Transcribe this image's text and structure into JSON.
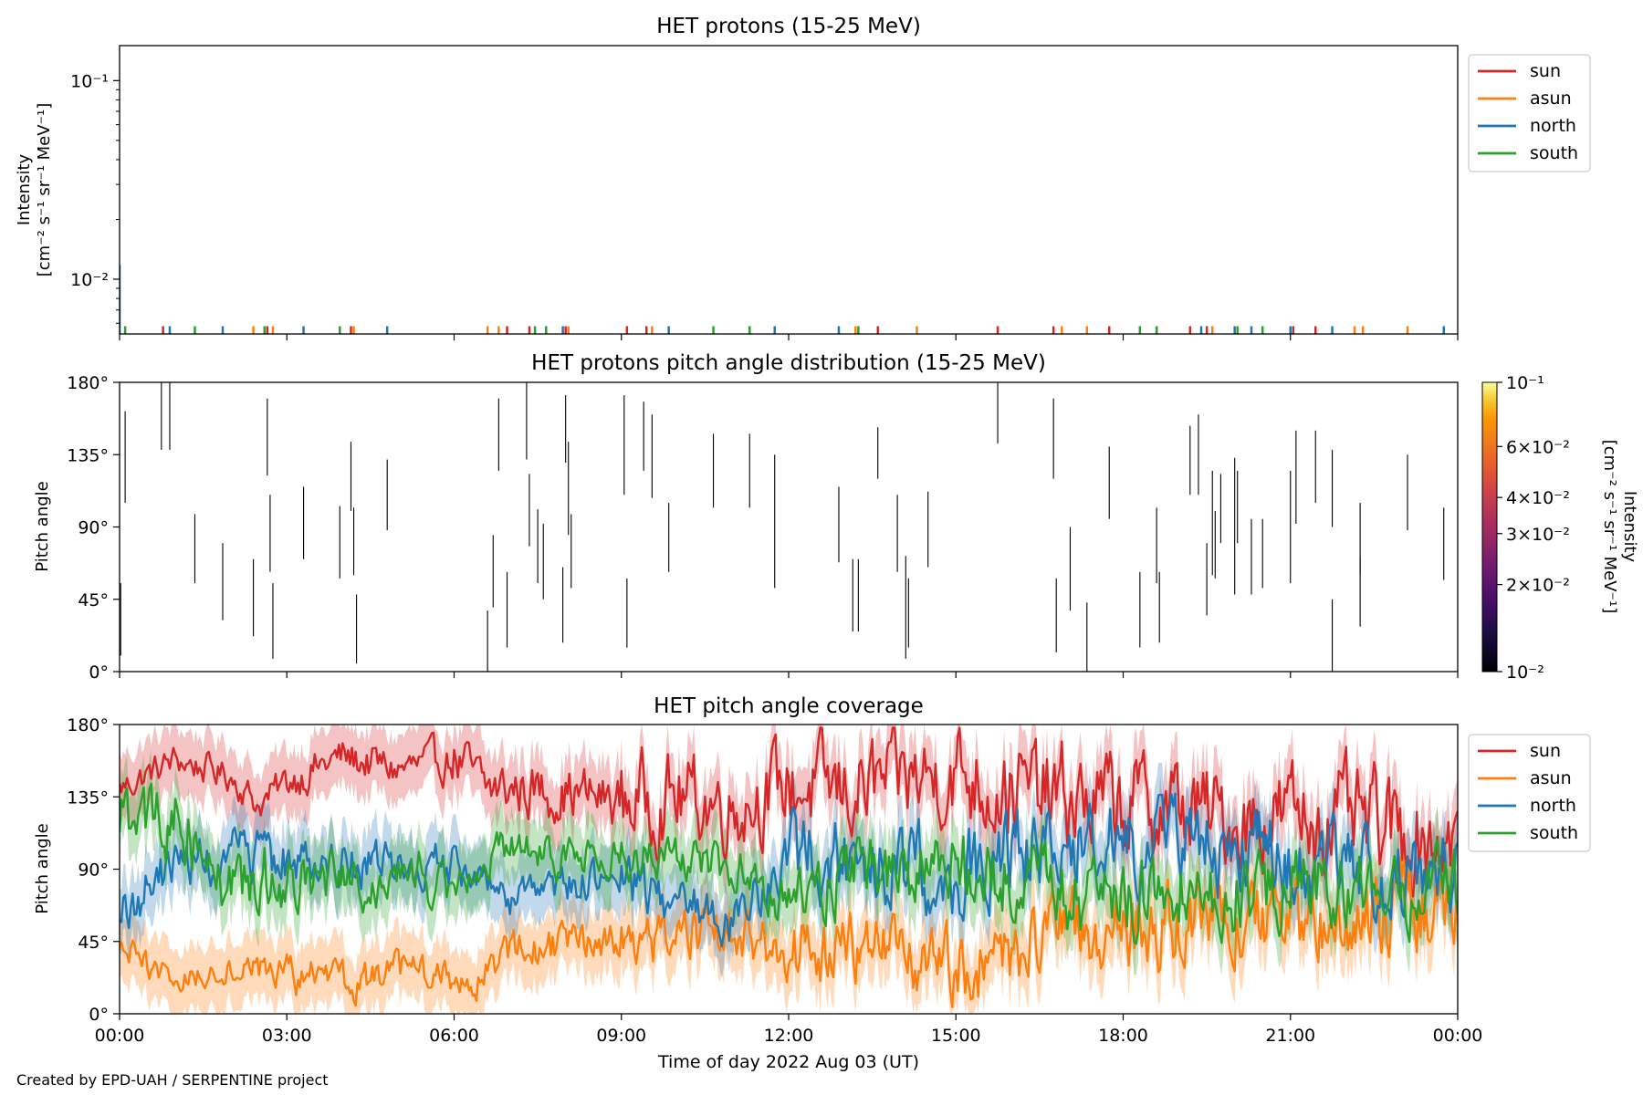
{
  "footer": "Created by EPD-UAH / SERPENTINE project",
  "chart_data": [
    {
      "type": "line",
      "title": "HET protons (15-25 MeV)",
      "ylabel_line1": "Intensity",
      "ylabel_line2": "[cm⁻² s⁻¹ sr⁻¹ MeV⁻¹]",
      "yscale": "log",
      "ylim": [
        0.0053,
        0.15
      ],
      "yticks": [
        {
          "v": 0.01,
          "label": "10⁻²"
        },
        {
          "v": 0.1,
          "label": "10⁻¹"
        }
      ],
      "legend": {
        "position": "outside-right",
        "entries": [
          "sun",
          "asun",
          "north",
          "south"
        ]
      },
      "colors": {
        "sun": "#d62728",
        "asun": "#ff7f0e",
        "north": "#1f77b4",
        "south": "#2ca02c"
      },
      "series": [
        {
          "name": "sun",
          "spikes": [
            [
              0.78,
              0.0058
            ],
            [
              2.65,
              0.0058
            ],
            [
              4.15,
              0.0058
            ],
            [
              6.95,
              0.0058
            ],
            [
              7.35,
              0.0058
            ],
            [
              8.0,
              0.0058
            ],
            [
              9.1,
              0.0058
            ],
            [
              9.45,
              0.0058
            ],
            [
              13.6,
              0.0058
            ],
            [
              15.75,
              0.0058
            ],
            [
              16.75,
              0.0058
            ],
            [
              17.75,
              0.0058
            ],
            [
              19.2,
              0.0058
            ],
            [
              19.5,
              0.0058
            ],
            [
              21.05,
              0.0058
            ],
            [
              21.45,
              0.0058
            ]
          ]
        },
        {
          "name": "asun",
          "spikes": [
            [
              2.4,
              0.0058
            ],
            [
              2.75,
              0.0058
            ],
            [
              4.2,
              0.0058
            ],
            [
              6.6,
              0.0058
            ],
            [
              6.8,
              0.0058
            ],
            [
              8.05,
              0.0058
            ],
            [
              9.55,
              0.0058
            ],
            [
              13.2,
              0.0058
            ],
            [
              14.3,
              0.0058
            ],
            [
              16.9,
              0.0058
            ],
            [
              17.35,
              0.0058
            ],
            [
              18.6,
              0.0058
            ],
            [
              19.6,
              0.0058
            ],
            [
              22.15,
              0.0058
            ],
            [
              22.3,
              0.0058
            ],
            [
              23.1,
              0.0058
            ]
          ]
        },
        {
          "name": "north",
          "spikes": [
            [
              0.0,
              0.0118
            ],
            [
              0.9,
              0.0058
            ],
            [
              1.85,
              0.0058
            ],
            [
              3.3,
              0.0058
            ],
            [
              4.8,
              0.0058
            ],
            [
              7.95,
              0.0058
            ],
            [
              9.85,
              0.0058
            ],
            [
              11.75,
              0.0058
            ],
            [
              12.9,
              0.0058
            ],
            [
              19.4,
              0.0058
            ],
            [
              20.0,
              0.0058
            ],
            [
              20.3,
              0.0058
            ],
            [
              21.0,
              0.0058
            ],
            [
              21.75,
              0.0058
            ],
            [
              23.75,
              0.0058
            ]
          ]
        },
        {
          "name": "south",
          "spikes": [
            [
              0.1,
              0.0058
            ],
            [
              1.35,
              0.0058
            ],
            [
              2.6,
              0.0058
            ],
            [
              3.95,
              0.0058
            ],
            [
              7.45,
              0.0058
            ],
            [
              7.65,
              0.0058
            ],
            [
              10.65,
              0.0058
            ],
            [
              11.3,
              0.0058
            ],
            [
              13.25,
              0.0058
            ],
            [
              18.3,
              0.0058
            ],
            [
              18.6,
              0.0058
            ],
            [
              20.05,
              0.0058
            ],
            [
              20.5,
              0.0058
            ]
          ]
        }
      ]
    },
    {
      "type": "heatmap",
      "title": "HET protons pitch angle distribution (15-25 MeV)",
      "ylabel": "Pitch angle",
      "ylim": [
        0,
        180
      ],
      "yticks": [
        "0°",
        "45°",
        "90°",
        "135°",
        "180°"
      ],
      "colorbar": {
        "label": "Intensity",
        "units": "[cm⁻² s⁻¹ sr⁻¹ MeV⁻¹]",
        "scale": "log",
        "range": [
          0.01,
          0.1
        ],
        "ticks": [
          "10⁻²",
          "2×10⁻²",
          "3×10⁻²",
          "4×10⁻²",
          "6×10⁻²",
          "10⁻¹"
        ]
      },
      "segments": [
        [
          0.02,
          10,
          55
        ],
        [
          0.1,
          105,
          162
        ],
        [
          0.75,
          138,
          180
        ],
        [
          0.9,
          138,
          180
        ],
        [
          1.35,
          55,
          98
        ],
        [
          1.85,
          32,
          80
        ],
        [
          2.4,
          22,
          70
        ],
        [
          2.65,
          122,
          170
        ],
        [
          2.7,
          62,
          110
        ],
        [
          2.75,
          8,
          55
        ],
        [
          3.3,
          70,
          115
        ],
        [
          3.95,
          58,
          103
        ],
        [
          4.15,
          100,
          143
        ],
        [
          4.2,
          60,
          102
        ],
        [
          4.25,
          5,
          48
        ],
        [
          4.8,
          88,
          132
        ],
        [
          6.6,
          0,
          38
        ],
        [
          6.7,
          40,
          85
        ],
        [
          6.8,
          125,
          170
        ],
        [
          6.95,
          15,
          62
        ],
        [
          7.3,
          132,
          180
        ],
        [
          7.35,
          78,
          123
        ],
        [
          7.5,
          55,
          101
        ],
        [
          7.6,
          45,
          92
        ],
        [
          7.95,
          18,
          65
        ],
        [
          8.0,
          130,
          172
        ],
        [
          8.05,
          85,
          143
        ],
        [
          8.1,
          52,
          98
        ],
        [
          9.05,
          110,
          172
        ],
        [
          9.1,
          15,
          58
        ],
        [
          9.4,
          125,
          168
        ],
        [
          9.55,
          108,
          160
        ],
        [
          9.85,
          62,
          105
        ],
        [
          10.65,
          102,
          148
        ],
        [
          11.3,
          102,
          148
        ],
        [
          11.75,
          52,
          135
        ],
        [
          12.9,
          68,
          115
        ],
        [
          13.15,
          25,
          70
        ],
        [
          13.25,
          25,
          70
        ],
        [
          13.6,
          120,
          152
        ],
        [
          13.95,
          62,
          110
        ],
        [
          14.1,
          8,
          72
        ],
        [
          14.15,
          15,
          58
        ],
        [
          14.5,
          65,
          112
        ],
        [
          15.75,
          142,
          180
        ],
        [
          16.75,
          120,
          170
        ],
        [
          16.8,
          12,
          58
        ],
        [
          17.05,
          38,
          90
        ],
        [
          17.35,
          0,
          43
        ],
        [
          17.75,
          95,
          140
        ],
        [
          18.3,
          15,
          62
        ],
        [
          18.6,
          55,
          102
        ],
        [
          18.65,
          18,
          62
        ],
        [
          19.2,
          110,
          153
        ],
        [
          19.35,
          110,
          160
        ],
        [
          19.5,
          35,
          80
        ],
        [
          19.6,
          60,
          125
        ],
        [
          19.65,
          58,
          100
        ],
        [
          19.75,
          80,
          123
        ],
        [
          20.0,
          48,
          133
        ],
        [
          20.05,
          80,
          125
        ],
        [
          20.3,
          48,
          95
        ],
        [
          20.5,
          52,
          95
        ],
        [
          21.0,
          55,
          125
        ],
        [
          21.1,
          92,
          150
        ],
        [
          21.45,
          105,
          150
        ],
        [
          21.75,
          90,
          138
        ],
        [
          21.75,
          0,
          45
        ],
        [
          22.25,
          60,
          105
        ],
        [
          22.25,
          28,
          72
        ],
        [
          23.1,
          88,
          135
        ],
        [
          23.75,
          57,
          102
        ]
      ]
    },
    {
      "type": "line",
      "title": "HET pitch angle coverage",
      "ylabel": "Pitch angle",
      "xlabel": "Time of day 2022 Aug 03 (UT)",
      "xticks": [
        "00:00",
        "03:00",
        "06:00",
        "09:00",
        "12:00",
        "15:00",
        "18:00",
        "21:00",
        "00:00"
      ],
      "xlim_hours": [
        0,
        24
      ],
      "ylim": [
        0,
        180
      ],
      "yticks": [
        "0°",
        "45°",
        "90°",
        "135°",
        "180°"
      ],
      "legend": {
        "position": "outside-right",
        "entries": [
          "sun",
          "asun",
          "north",
          "south"
        ]
      },
      "band_halfwidth_deg": 20,
      "series": [
        {
          "name": "sun",
          "color": "#d62728",
          "anchors": [
            [
              0,
              140
            ],
            [
              1,
              158
            ],
            [
              2,
              148
            ],
            [
              2.5,
              130
            ],
            [
              3,
              145
            ],
            [
              4,
              160
            ],
            [
              5,
              152
            ],
            [
              6,
              158
            ],
            [
              6.6,
              140
            ],
            [
              7,
              140
            ],
            [
              8,
              138
            ],
            [
              9,
              132
            ],
            [
              10,
              135
            ],
            [
              11,
              130
            ],
            [
              12,
              142
            ],
            [
              13,
              138
            ],
            [
              14,
              145
            ],
            [
              15,
              150
            ],
            [
              16,
              140
            ],
            [
              17,
              132
            ],
            [
              18,
              130
            ],
            [
              19,
              128
            ],
            [
              20,
              120
            ],
            [
              21,
              125
            ],
            [
              22,
              120
            ],
            [
              23,
              112
            ],
            [
              24,
              110
            ]
          ],
          "jitter": [
            8,
            10,
            14,
            22,
            24,
            26,
            25,
            26,
            24
          ]
        },
        {
          "name": "asun",
          "color": "#ff7f0e",
          "anchors": [
            [
              0,
              40
            ],
            [
              1,
              20
            ],
            [
              2,
              30
            ],
            [
              3,
              25
            ],
            [
              4,
              18
            ],
            [
              5,
              25
            ],
            [
              6,
              22
            ],
            [
              6.6,
              25
            ],
            [
              7,
              40
            ],
            [
              8,
              42
            ],
            [
              9,
              48
            ],
            [
              10,
              45
            ],
            [
              11,
              50
            ],
            [
              12,
              38
            ],
            [
              13,
              45
            ],
            [
              14,
              35
            ],
            [
              15,
              30
            ],
            [
              16,
              40
            ],
            [
              17,
              48
            ],
            [
              18,
              50
            ],
            [
              19,
              52
            ],
            [
              20,
              58
            ],
            [
              21,
              55
            ],
            [
              22,
              60
            ],
            [
              23,
              65
            ],
            [
              24,
              70
            ]
          ],
          "jitter": [
            8,
            10,
            10,
            14,
            18,
            20,
            20,
            22,
            22
          ]
        },
        {
          "name": "north",
          "color": "#1f77b4",
          "anchors": [
            [
              0,
              60
            ],
            [
              1,
              95
            ],
            [
              2,
              95
            ],
            [
              3,
              95
            ],
            [
              4,
              95
            ],
            [
              5,
              90
            ],
            [
              6,
              90
            ],
            [
              7,
              70
            ],
            [
              8,
              80
            ],
            [
              9,
              85
            ],
            [
              10,
              70
            ],
            [
              11,
              60
            ],
            [
              12,
              95
            ],
            [
              13,
              100
            ],
            [
              14,
              90
            ],
            [
              15,
              85
            ],
            [
              16,
              100
            ],
            [
              17,
              110
            ],
            [
              18,
              105
            ],
            [
              19,
              110
            ],
            [
              20,
              100
            ],
            [
              21,
              95
            ],
            [
              22,
              90
            ],
            [
              23,
              85
            ],
            [
              24,
              90
            ]
          ],
          "jitter": [
            14,
            12,
            10,
            14,
            22,
            22,
            22,
            22,
            20
          ]
        },
        {
          "name": "south",
          "color": "#2ca02c",
          "anchors": [
            [
              0,
              120
            ],
            [
              1,
              120
            ],
            [
              2,
              80
            ],
            [
              3,
              85
            ],
            [
              4,
              80
            ],
            [
              5,
              85
            ],
            [
              6,
              85
            ],
            [
              7,
              105
            ],
            [
              8,
              95
            ],
            [
              9,
              100
            ],
            [
              10,
              100
            ],
            [
              11,
              90
            ],
            [
              12,
              70
            ],
            [
              13,
              90
            ],
            [
              14,
              85
            ],
            [
              15,
              90
            ],
            [
              16,
              85
            ],
            [
              17,
              70
            ],
            [
              18,
              75
            ],
            [
              19,
              80
            ],
            [
              20,
              75
            ],
            [
              21,
              80
            ],
            [
              22,
              75
            ],
            [
              23,
              80
            ],
            [
              24,
              75
            ]
          ],
          "jitter": [
            18,
            14,
            10,
            12,
            18,
            20,
            22,
            20,
            20
          ]
        }
      ]
    }
  ]
}
